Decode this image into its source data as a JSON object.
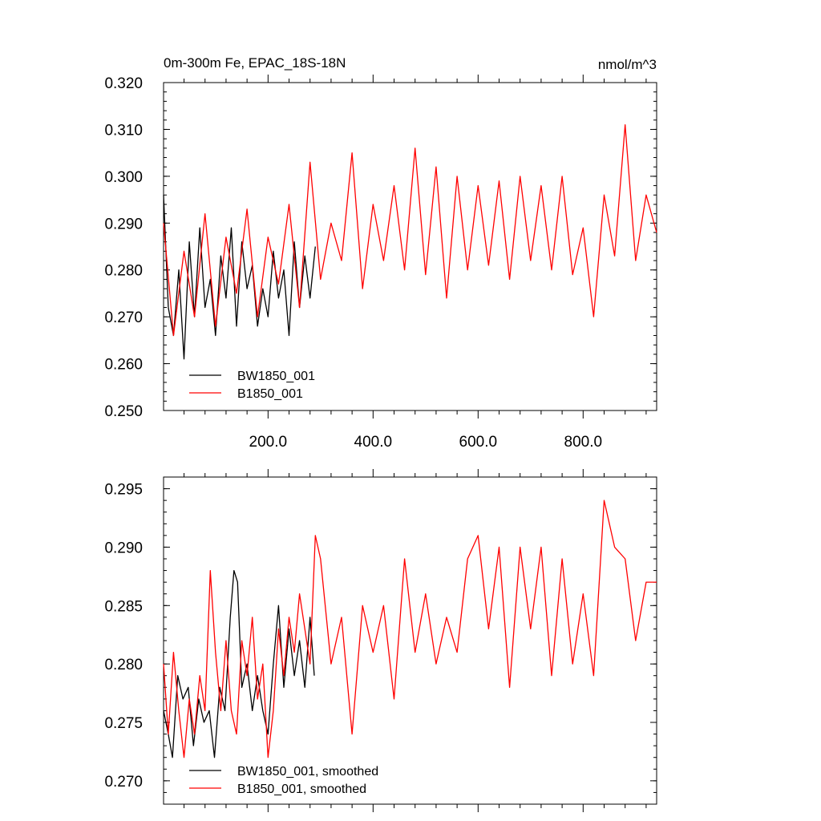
{
  "colors": {
    "black_series": "#000000",
    "red_series": "#ff0000"
  },
  "chart_data": [
    {
      "type": "line",
      "title": "0m-300m Fe, EPAC_18S-18N",
      "units": "nmol/m^3",
      "xlim": [
        1,
        940
      ],
      "ylim": [
        0.25,
        0.32
      ],
      "xticks": [
        200,
        400,
        600,
        800
      ],
      "xtick_labels": [
        "200.0",
        "400.0",
        "600.0",
        "800.0"
      ],
      "yticks": [
        0.25,
        0.26,
        0.27,
        0.28,
        0.29,
        0.3,
        0.31,
        0.32
      ],
      "ytick_labels": [
        "0.250",
        "0.260",
        "0.270",
        "0.280",
        "0.290",
        "0.300",
        "0.310",
        "0.320"
      ],
      "legend": {
        "placement": "lower-left",
        "entries": [
          "BW1850_001",
          "B1850_001"
        ]
      },
      "series": [
        {
          "name": "BW1850_001",
          "color": "#000000",
          "x": [
            1,
            10,
            20,
            30,
            40,
            50,
            60,
            70,
            80,
            90,
            100,
            110,
            120,
            130,
            140,
            150,
            160,
            170,
            180,
            190,
            200,
            210,
            220,
            230,
            240,
            250,
            260,
            270,
            280,
            290
          ],
          "values": [
            0.296,
            0.272,
            0.266,
            0.28,
            0.261,
            0.286,
            0.27,
            0.289,
            0.272,
            0.278,
            0.266,
            0.283,
            0.274,
            0.289,
            0.268,
            0.286,
            0.276,
            0.281,
            0.268,
            0.276,
            0.27,
            0.284,
            0.274,
            0.28,
            0.266,
            0.286,
            0.272,
            0.283,
            0.274,
            0.285
          ]
        },
        {
          "name": "B1850_001",
          "color": "#ff0000",
          "x": [
            1,
            20,
            40,
            60,
            80,
            100,
            120,
            140,
            160,
            180,
            200,
            220,
            240,
            260,
            280,
            300,
            320,
            340,
            360,
            380,
            400,
            420,
            440,
            460,
            480,
            500,
            520,
            540,
            560,
            580,
            600,
            620,
            640,
            660,
            680,
            700,
            720,
            740,
            760,
            780,
            800,
            820,
            840,
            860,
            880,
            900,
            920,
            940
          ],
          "values": [
            0.29,
            0.266,
            0.284,
            0.27,
            0.292,
            0.268,
            0.287,
            0.275,
            0.293,
            0.27,
            0.287,
            0.277,
            0.294,
            0.272,
            0.303,
            0.278,
            0.29,
            0.282,
            0.305,
            0.276,
            0.294,
            0.282,
            0.298,
            0.28,
            0.306,
            0.279,
            0.302,
            0.274,
            0.3,
            0.28,
            0.298,
            0.281,
            0.299,
            0.278,
            0.3,
            0.282,
            0.298,
            0.28,
            0.3,
            0.279,
            0.289,
            0.27,
            0.296,
            0.283,
            0.311,
            0.282,
            0.296,
            0.288
          ]
        }
      ]
    },
    {
      "type": "line",
      "xlim": [
        1,
        940
      ],
      "ylim": [
        0.268,
        0.296
      ],
      "xticks": [
        200,
        400,
        600,
        800
      ],
      "yticks": [
        0.27,
        0.275,
        0.28,
        0.285,
        0.29,
        0.295
      ],
      "ytick_labels": [
        "0.270",
        "0.275",
        "0.280",
        "0.285",
        "0.290",
        "0.295"
      ],
      "legend": {
        "placement": "lower-left",
        "entries": [
          "BW1850_001, smoothed",
          "B1850_001, smoothed"
        ]
      },
      "series": [
        {
          "name": "BW1850_001, smoothed",
          "color": "#000000",
          "x": [
            1,
            10,
            18,
            28,
            38,
            48,
            58,
            68,
            78,
            88,
            98,
            108,
            118,
            128,
            135,
            142,
            150,
            160,
            170,
            180,
            190,
            200,
            210,
            220,
            230,
            240,
            250,
            260,
            270,
            280,
            288
          ],
          "values": [
            0.276,
            0.274,
            0.272,
            0.279,
            0.277,
            0.278,
            0.273,
            0.277,
            0.275,
            0.276,
            0.272,
            0.278,
            0.276,
            0.284,
            0.288,
            0.287,
            0.278,
            0.28,
            0.276,
            0.279,
            0.276,
            0.274,
            0.28,
            0.285,
            0.278,
            0.283,
            0.279,
            0.282,
            0.278,
            0.284,
            0.279
          ]
        },
        {
          "name": "B1850_001, smoothed",
          "color": "#ff0000",
          "x": [
            1,
            10,
            20,
            30,
            40,
            50,
            60,
            70,
            80,
            90,
            100,
            110,
            120,
            130,
            140,
            150,
            160,
            170,
            180,
            190,
            200,
            210,
            220,
            230,
            240,
            250,
            260,
            270,
            280,
            290,
            300,
            320,
            340,
            360,
            380,
            400,
            420,
            440,
            460,
            480,
            500,
            520,
            540,
            560,
            580,
            600,
            620,
            640,
            660,
            680,
            700,
            720,
            740,
            760,
            780,
            800,
            820,
            840,
            860,
            880,
            900,
            920,
            940
          ],
          "values": [
            0.28,
            0.274,
            0.281,
            0.276,
            0.272,
            0.277,
            0.274,
            0.279,
            0.276,
            0.288,
            0.281,
            0.276,
            0.282,
            0.276,
            0.274,
            0.282,
            0.279,
            0.284,
            0.277,
            0.28,
            0.272,
            0.276,
            0.283,
            0.279,
            0.284,
            0.281,
            0.286,
            0.283,
            0.28,
            0.291,
            0.289,
            0.28,
            0.284,
            0.274,
            0.285,
            0.281,
            0.285,
            0.277,
            0.289,
            0.281,
            0.286,
            0.28,
            0.284,
            0.281,
            0.289,
            0.291,
            0.283,
            0.29,
            0.278,
            0.29,
            0.283,
            0.29,
            0.279,
            0.289,
            0.28,
            0.286,
            0.279,
            0.294,
            0.29,
            0.289,
            0.282,
            0.287,
            0.287
          ]
        }
      ]
    }
  ]
}
